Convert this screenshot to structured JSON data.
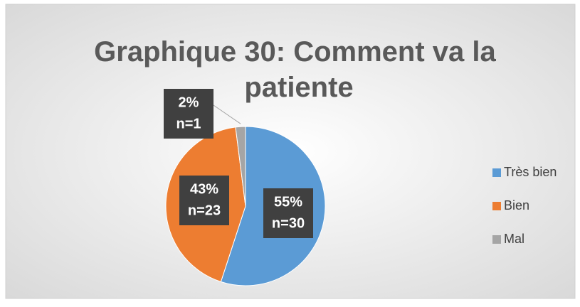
{
  "chart_data": {
    "type": "pie",
    "title": "Graphique 30: Comment va la patiente",
    "categories": [
      "Très bien",
      "Bien",
      "Mal"
    ],
    "values": [
      55,
      43,
      2
    ],
    "value_labels": [
      "55%",
      "43%",
      "2%"
    ],
    "counts": [
      30,
      23,
      1
    ],
    "count_labels": [
      "n=30",
      "n=23",
      "n=1"
    ],
    "colors": [
      "#5b9bd5",
      "#ed7d31",
      "#a5a5a5"
    ],
    "legend": "right"
  }
}
